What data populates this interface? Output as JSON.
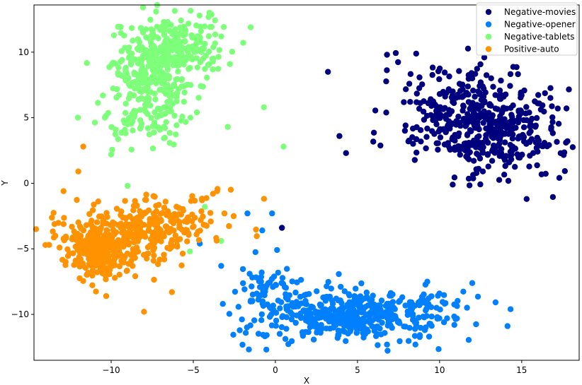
{
  "chart_data": {
    "type": "scatter",
    "title": "",
    "xlabel": "X",
    "ylabel": "Y",
    "xlim": [
      -14.7,
      18.5
    ],
    "ylim": [
      -13.5,
      13.6
    ],
    "xticks": [
      -10,
      -5,
      0,
      5,
      10,
      15
    ],
    "yticks": [
      -10,
      -5,
      0,
      5,
      10
    ],
    "xtick_labels": [
      "−10",
      "−5",
      "0",
      "5",
      "10",
      "15"
    ],
    "ytick_labels": [
      "−10",
      "−5",
      "0",
      "5",
      "10"
    ],
    "grid": false,
    "legend_position": "top-right",
    "series": [
      {
        "name": "Negative-movies",
        "color": "#00007f",
        "clusters": [
          {
            "cx": 12.5,
            "cy": 4.6,
            "sx": 2.6,
            "sy": 1.8,
            "rot": -0.38,
            "n": 500
          }
        ],
        "points": [
          [
            3.2,
            8.5
          ],
          [
            3.9,
            3.6
          ],
          [
            4.3,
            2.3
          ],
          [
            0.4,
            -3.4
          ],
          [
            17.7,
            3.1
          ],
          [
            15.3,
            -1.2
          ],
          [
            10.8,
            -0.1
          ],
          [
            17.2,
            5.7
          ],
          [
            6.8,
            9.8
          ]
        ]
      },
      {
        "name": "Negative-opener",
        "color": "#0080ff",
        "clusters": [
          {
            "cx": 4.7,
            "cy": -10.0,
            "sx": 3.0,
            "sy": 1.0,
            "rot": 0.05,
            "n": 480
          },
          {
            "cx": -0.4,
            "cy": -8.2,
            "sx": 1.0,
            "sy": 1.1,
            "rot": 0.0,
            "n": 60
          }
        ],
        "points": [
          [
            -1.7,
            -2.3
          ],
          [
            -0.2,
            -2.3
          ],
          [
            -4.6,
            -4.6
          ],
          [
            -3.2,
            -9.2
          ],
          [
            -3.3,
            -6.3
          ],
          [
            -0.8,
            -3.6
          ],
          [
            10.9,
            -10.8
          ],
          [
            6.8,
            -12.3
          ]
        ]
      },
      {
        "name": "Negative-tablets",
        "color": "#7dff7a",
        "clusters": [
          {
            "cx": -6.4,
            "cy": 10.2,
            "sx": 1.6,
            "sy": 1.2,
            "rot": 0.45,
            "n": 300
          },
          {
            "cx": -7.4,
            "cy": 6.5,
            "sx": 1.5,
            "sy": 2.0,
            "rot": -0.25,
            "n": 220
          }
        ],
        "points": [
          [
            0.5,
            2.8
          ],
          [
            -0.7,
            5.8
          ],
          [
            -10.0,
            2.2
          ],
          [
            -9.0,
            -0.2
          ],
          [
            -5.2,
            -5.2
          ],
          [
            -4.3,
            -1.8
          ],
          [
            -3.3,
            -4.4
          ],
          [
            -2.9,
            4.3
          ],
          [
            -1.5,
            11.9
          ],
          [
            -10.5,
            6.7
          ]
        ]
      },
      {
        "name": "Positive-auto",
        "color": "#ff9200",
        "clusters": [
          {
            "cx": -10.9,
            "cy": -5.1,
            "sx": 1.0,
            "sy": 1.1,
            "rot": 0.0,
            "n": 260
          },
          {
            "cx": -7.8,
            "cy": -3.6,
            "sx": 2.4,
            "sy": 1.2,
            "rot": 0.3,
            "n": 320
          }
        ],
        "points": [
          [
            -12.9,
            -0.6
          ],
          [
            -11.7,
            2.8
          ],
          [
            -8.0,
            -9.8
          ],
          [
            -6.3,
            -8.3
          ],
          [
            -10.3,
            -8.6
          ],
          [
            -3.1,
            -2.3
          ],
          [
            -3.8,
            -0.8
          ],
          [
            -12.0,
            0.9
          ],
          [
            -4.8,
            -3.9
          ]
        ]
      }
    ]
  }
}
